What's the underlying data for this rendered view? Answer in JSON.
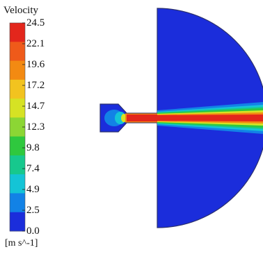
{
  "legend": {
    "title": "Velocity",
    "units": "[m s^-1]",
    "tick_labels": [
      "24.5",
      "22.1",
      "19.6",
      "17.2",
      "14.7",
      "12.3",
      "9.8",
      "7.4",
      "4.9",
      "2.5",
      "0.0"
    ],
    "band_colors": [
      "#e3261c",
      "#ef5a1a",
      "#f38a12",
      "#f2c31f",
      "#d6e224",
      "#8cd634",
      "#2fc83e",
      "#17c88d",
      "#14c4d6",
      "#1282e6",
      "#1b2ddb"
    ]
  },
  "colors": {
    "background": "#ffffff",
    "domain_fill": "#1b2ddb",
    "outline": "#1a1a1a",
    "jet_core": "#e3261c"
  }
}
